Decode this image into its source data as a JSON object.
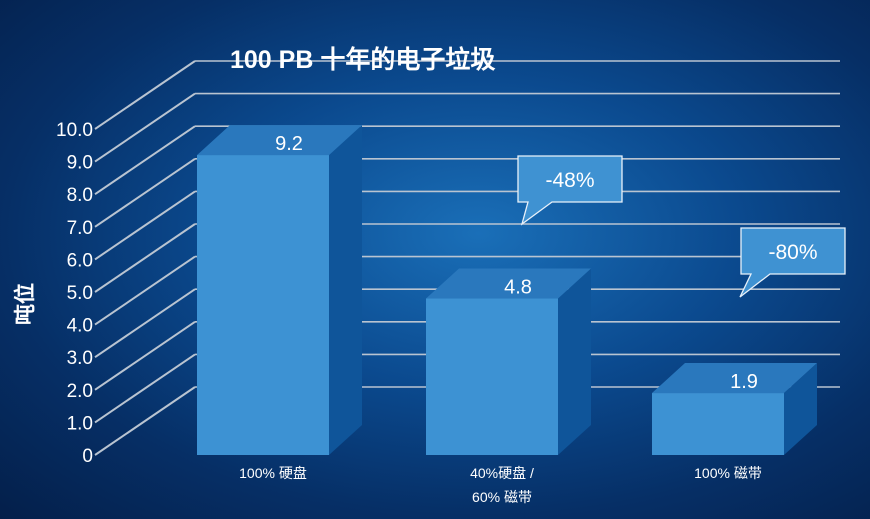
{
  "chart_data": {
    "type": "bar",
    "title": "100 PB 十年的电子垃圾",
    "ylabel": "吨位",
    "xlabel": "",
    "ylim": [
      0,
      10
    ],
    "y_ticks": [
      "0",
      "1.0",
      "2.0",
      "3.0",
      "4.0",
      "5.0",
      "6.0",
      "7.0",
      "8.0",
      "9.0",
      "10.0"
    ],
    "categories": [
      [
        "100%  硬盘"
      ],
      [
        "40%硬盘  /",
        "60%  磁带"
      ],
      [
        "100%  磁带"
      ]
    ],
    "values": [
      9.2,
      4.8,
      1.9
    ],
    "value_labels": [
      "9.2",
      "4.8",
      "1.9"
    ],
    "callouts": [
      "-48%",
      "-80%"
    ],
    "grid": true,
    "style": "3d-bar",
    "colors": {
      "bar_front": "#3d92d3",
      "bar_top": "#2a78bd",
      "bar_side": "#0f559a",
      "grid": "#b9c4d1",
      "callout_bg": "#3f92d2",
      "text": "#ffffff"
    }
  }
}
